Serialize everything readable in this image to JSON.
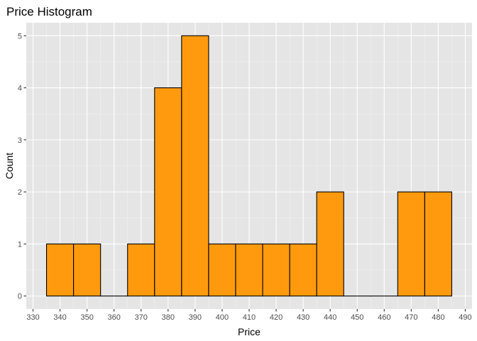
{
  "chart_data": {
    "type": "bar",
    "title": "Price Histogram",
    "xlabel": "Price",
    "ylabel": "Count",
    "bin_width": 10,
    "bins": [
      {
        "start": 335,
        "end": 345,
        "count": 1
      },
      {
        "start": 345,
        "end": 355,
        "count": 1
      },
      {
        "start": 355,
        "end": 365,
        "count": 0
      },
      {
        "start": 365,
        "end": 375,
        "count": 1
      },
      {
        "start": 375,
        "end": 385,
        "count": 4
      },
      {
        "start": 385,
        "end": 395,
        "count": 5
      },
      {
        "start": 395,
        "end": 405,
        "count": 1
      },
      {
        "start": 405,
        "end": 415,
        "count": 1
      },
      {
        "start": 415,
        "end": 425,
        "count": 1
      },
      {
        "start": 425,
        "end": 435,
        "count": 1
      },
      {
        "start": 435,
        "end": 445,
        "count": 2
      },
      {
        "start": 445,
        "end": 455,
        "count": 0
      },
      {
        "start": 455,
        "end": 465,
        "count": 0
      },
      {
        "start": 465,
        "end": 475,
        "count": 2
      },
      {
        "start": 475,
        "end": 485,
        "count": 2
      }
    ],
    "xticks": [
      330,
      340,
      350,
      360,
      370,
      380,
      390,
      400,
      410,
      420,
      430,
      440,
      450,
      460,
      470,
      480,
      490
    ],
    "yticks": [
      0,
      1,
      2,
      3,
      4,
      5
    ],
    "xlim": [
      327.5,
      492.5
    ],
    "ylim": [
      -0.25,
      5.25
    ],
    "grid": true,
    "legend": "none",
    "colors": {
      "bar_fill": "#ff9a0e",
      "bar_stroke": "#000000",
      "panel_background": "#e5e5e5",
      "grid_major": "#ffffff",
      "grid_minor": "#f2f2f2"
    }
  }
}
